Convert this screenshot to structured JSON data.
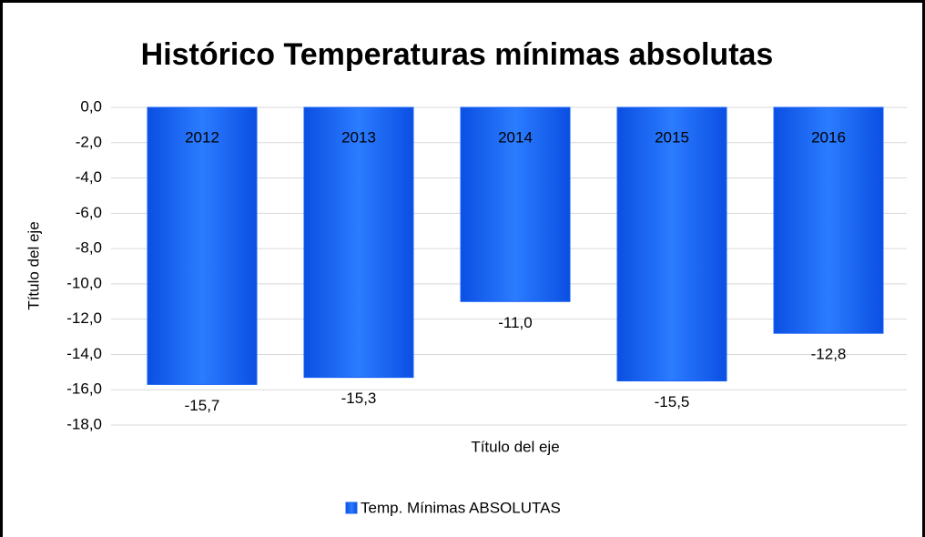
{
  "chart_data": {
    "type": "bar",
    "title": "Histórico Temperaturas mínimas absolutas",
    "x_label": "Título del eje",
    "y_label": "Título del eje",
    "categories": [
      "2012",
      "2013",
      "2014",
      "2015",
      "2016"
    ],
    "series": [
      {
        "name": "Temp. Mínimas ABSOLUTAS",
        "color": "#1560f5",
        "values": [
          -15.7,
          -15.3,
          -11.0,
          -15.5,
          -12.8
        ],
        "value_labels": [
          "-15,7",
          "-15,3",
          "-11,0",
          "-15,5",
          "-12,8"
        ]
      }
    ],
    "ylim": [
      -18,
      0
    ],
    "yticks": [
      {
        "value": 0,
        "label": "0,0"
      },
      {
        "value": -2,
        "label": "-2,0"
      },
      {
        "value": -4,
        "label": "-4,0"
      },
      {
        "value": -6,
        "label": "-6,0"
      },
      {
        "value": -8,
        "label": "-8,0"
      },
      {
        "value": -10,
        "label": "-10,0"
      },
      {
        "value": -12,
        "label": "-12,0"
      },
      {
        "value": -14,
        "label": "-14,0"
      },
      {
        "value": -16,
        "label": "-16,0"
      },
      {
        "value": -18,
        "label": "-18,0"
      }
    ],
    "grid": true,
    "legend": "bottom"
  }
}
